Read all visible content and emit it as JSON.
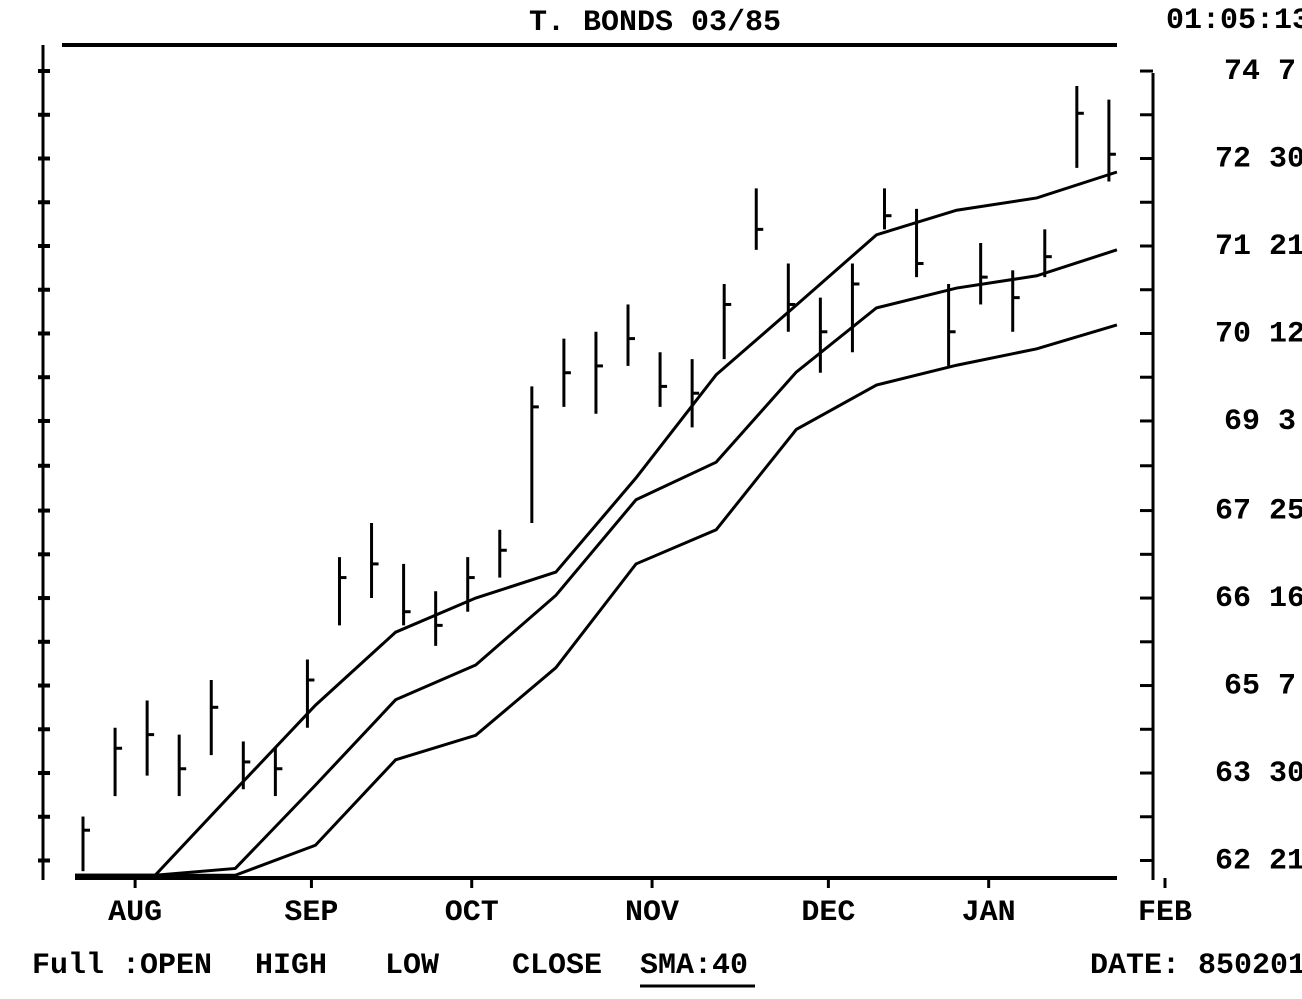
{
  "chart_data": {
    "type": "ohlc",
    "title": "T. BONDS 03/85",
    "time": "01:05:13",
    "footer": {
      "mode": "Full :OPEN",
      "fields": [
        "HIGH",
        "LOW",
        "CLOSE"
      ],
      "indicator": "SMA:40",
      "date": "DATE: 850201"
    },
    "color": "#000000",
    "x": [
      1,
      5,
      9,
      13,
      17,
      21,
      25,
      29,
      33,
      37,
      41,
      45,
      49,
      53,
      57,
      61,
      65,
      69,
      73,
      77,
      81,
      85,
      89,
      93,
      97,
      101,
      105,
      109,
      113,
      117,
      121,
      125,
      129
    ],
    "high": [
      63.3,
      64.6,
      65.0,
      64.5,
      65.3,
      64.4,
      64.3,
      65.6,
      67.1,
      67.6,
      67.0,
      66.6,
      67.1,
      67.5,
      69.6,
      70.3,
      70.4,
      70.8,
      70.1,
      70.0,
      71.1,
      72.5,
      71.4,
      70.9,
      71.4,
      72.5,
      72.2,
      71.1,
      71.7,
      71.3,
      71.9,
      74.0,
      73.8
    ],
    "low": [
      62.5,
      63.6,
      63.9,
      63.6,
      64.2,
      63.7,
      63.6,
      64.6,
      66.1,
      66.5,
      66.1,
      65.8,
      66.3,
      66.8,
      67.6,
      69.3,
      69.2,
      69.9,
      69.3,
      69.0,
      70.0,
      71.6,
      70.4,
      69.8,
      70.1,
      71.9,
      71.2,
      69.9,
      70.8,
      70.4,
      71.2,
      72.8,
      72.6
    ],
    "close": [
      63.1,
      64.3,
      64.5,
      64.0,
      64.9,
      64.1,
      64.0,
      65.3,
      66.8,
      67.0,
      66.3,
      66.1,
      66.8,
      67.2,
      69.3,
      69.8,
      69.9,
      70.3,
      69.6,
      69.5,
      70.8,
      71.9,
      70.8,
      70.4,
      71.1,
      72.1,
      71.4,
      70.4,
      71.2,
      70.9,
      71.5,
      73.6,
      73.0
    ],
    "line_x": [
      0,
      10,
      20,
      30,
      40,
      50,
      60,
      70,
      80,
      90,
      100,
      110,
      120,
      130
    ],
    "lines": [
      {
        "values": [
          62.44,
          62.44,
          63.69,
          64.93,
          66.0,
          66.5,
          66.88,
          68.26,
          69.77,
          70.79,
          71.82,
          72.18,
          72.36,
          72.74
        ]
      },
      {
        "values": [
          62.44,
          62.44,
          62.54,
          63.76,
          65.01,
          65.52,
          66.54,
          67.94,
          68.49,
          69.81,
          70.75,
          71.04,
          71.22,
          71.6
        ]
      },
      {
        "values": [
          62.44,
          62.44,
          62.44,
          62.88,
          64.13,
          64.49,
          65.48,
          67.0,
          67.5,
          68.97,
          69.62,
          69.91,
          70.15,
          70.5
        ]
      }
    ],
    "xlim": [
      0,
      136
    ],
    "xticks": [
      {
        "value": 7.5,
        "label": "AUG"
      },
      {
        "value": 29.5,
        "label": "SEP"
      },
      {
        "value": 49.5,
        "label": "OCT"
      },
      {
        "value": 72,
        "label": "NOV"
      },
      {
        "value": 94,
        "label": "DEC"
      },
      {
        "value": 114,
        "label": "JAN"
      },
      {
        "value": 136,
        "label": "FEB"
      }
    ],
    "ylim": [
      62.4,
      74.6
    ],
    "yticks": [
      {
        "value": 62.65625,
        "label": "62 21"
      },
      {
        "value": 63.9375,
        "label": "63 30"
      },
      {
        "value": 65.21875,
        "label": "65 7"
      },
      {
        "value": 66.5,
        "label": "66 16"
      },
      {
        "value": 67.78125,
        "label": "67 25"
      },
      {
        "value": 69.09375,
        "label": "69 3"
      },
      {
        "value": 70.375,
        "label": "70 12"
      },
      {
        "value": 71.65625,
        "label": "71 21"
      },
      {
        "value": 72.9375,
        "label": "72 30"
      },
      {
        "value": 74.21875,
        "label": "74 7"
      }
    ]
  }
}
